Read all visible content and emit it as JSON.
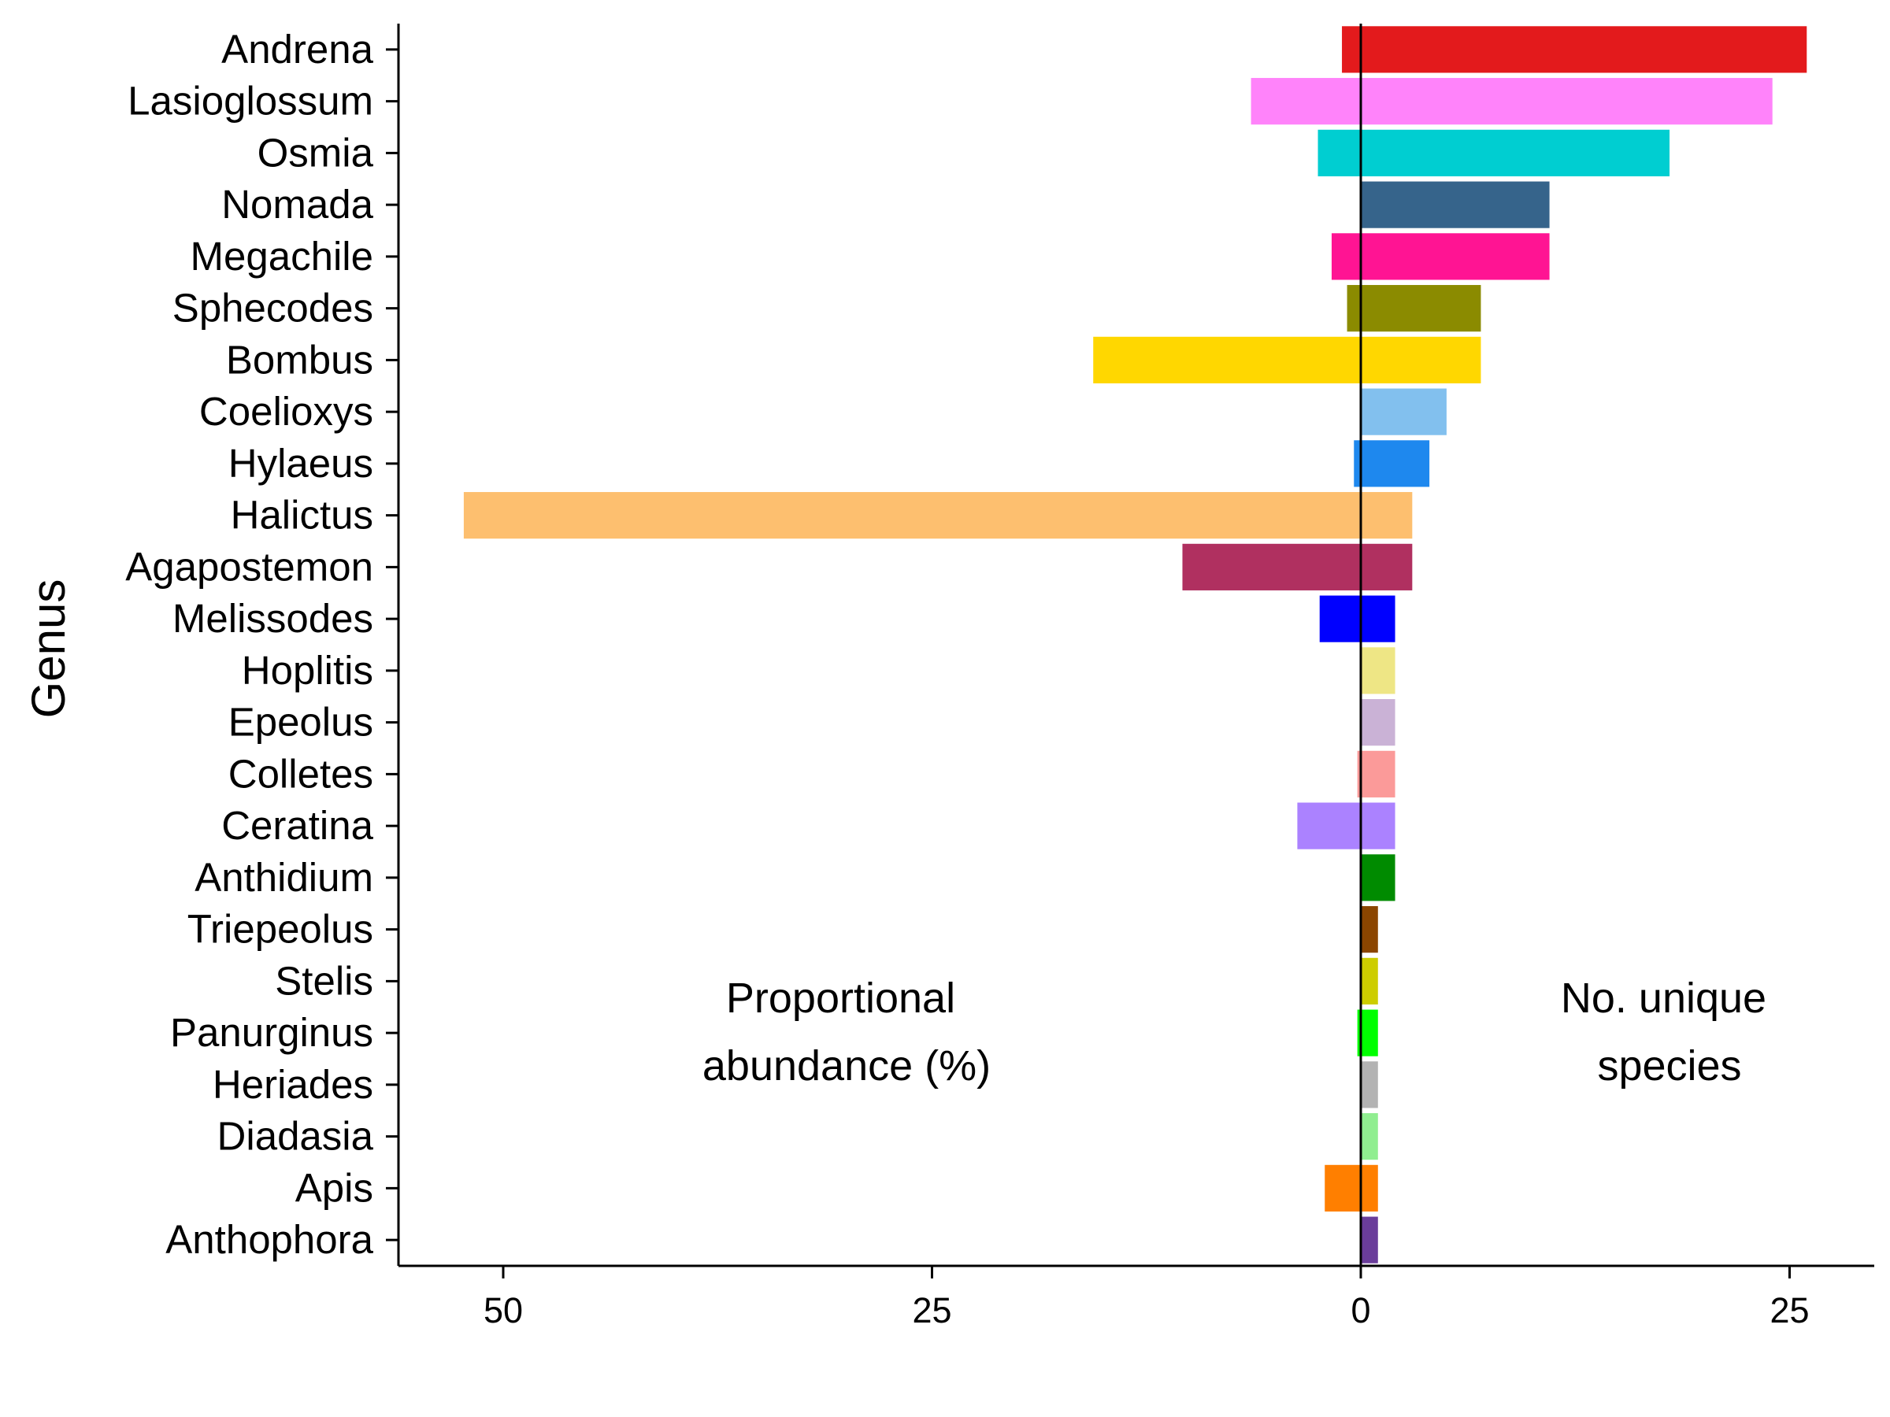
{
  "chart_data": {
    "type": "bar",
    "orientation": "horizontal-diverging",
    "ylabel": "Genus",
    "xlabel": "",
    "left_annotation": [
      "Proportional",
      "abundance (%)"
    ],
    "right_annotation": [
      "No. unique",
      "species"
    ],
    "x_tick_labels": [
      {
        "value": -50,
        "label": "50"
      },
      {
        "value": -25,
        "label": "25"
      },
      {
        "value": 0,
        "label": "0"
      },
      {
        "value": 25,
        "label": "25"
      }
    ],
    "xlim": [
      -56.5,
      30
    ],
    "categories": [
      "Andrena",
      "Lasioglossum",
      "Osmia",
      "Nomada",
      "Megachile",
      "Sphecodes",
      "Bombus",
      "Coelioxys",
      "Hylaeus",
      "Halictus",
      "Agapostemon",
      "Melissodes",
      "Hoplitis",
      "Epeolus",
      "Colletes",
      "Ceratina",
      "Anthidium",
      "Triepeolus",
      "Stelis",
      "Panurginus",
      "Heriades",
      "Diadasia",
      "Apis",
      "Anthophora"
    ],
    "series": [
      {
        "name": "Proportional abundance (%)",
        "side": "left",
        "values": [
          1.1,
          6.4,
          2.5,
          0.0,
          1.7,
          0.8,
          15.6,
          0.0,
          0.4,
          52.3,
          10.4,
          2.4,
          0.0,
          0.0,
          0.2,
          3.7,
          0.0,
          0.0,
          0.0,
          0.2,
          0.0,
          0.0,
          2.1,
          0.0
        ]
      },
      {
        "name": "No. unique species",
        "side": "right",
        "values": [
          26,
          24,
          18,
          11,
          11,
          7,
          7,
          5,
          4,
          3,
          3,
          2,
          2,
          2,
          2,
          2,
          2,
          1,
          1,
          1,
          1,
          1,
          1,
          1
        ]
      }
    ],
    "colors": [
      "#E31A1C",
      "#FF83FA",
      "#00CED1",
      "#36648B",
      "#FF1493",
      "#8B8B00",
      "#FFD700",
      "#82C0EE",
      "#1E88EE",
      "#FDBF6F",
      "#B03060",
      "#0000FF",
      "#EEE685",
      "#CAB2D6",
      "#FB9A99",
      "#AB82FF",
      "#008B00",
      "#8B4500",
      "#CDCD00",
      "#00FF00",
      "#B3B3B3",
      "#90EE90",
      "#FF7F00",
      "#6A3D9A"
    ],
    "grid": false,
    "legend": "none"
  }
}
